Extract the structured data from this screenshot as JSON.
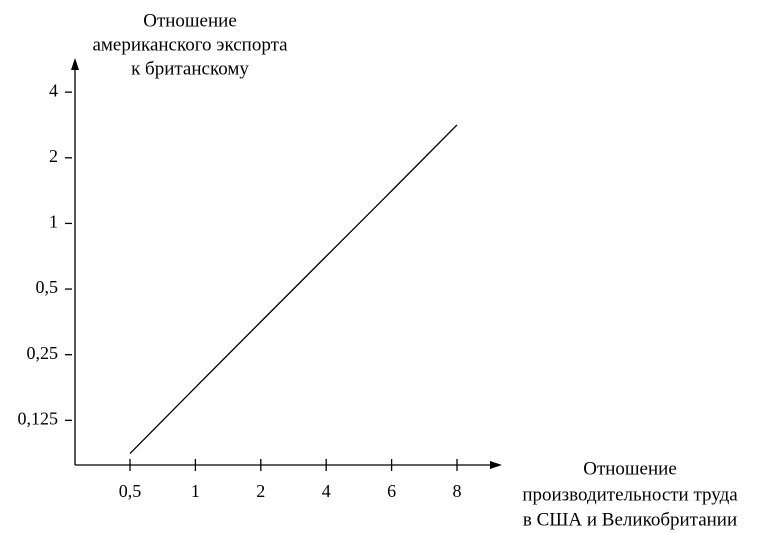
{
  "chart_data": {
    "type": "line",
    "y_label": [
      "Отношение",
      "американского экспорта",
      "к британскому"
    ],
    "x_label": [
      "Отношение",
      "производительности труда",
      "в США и Великобритании"
    ],
    "categories": [
      "0,5",
      "1",
      "2",
      "4",
      "6",
      "8"
    ],
    "series": [
      {
        "color": "#000000",
        "values": [
          0.088,
          0.177,
          0.354,
          0.707,
          1.41,
          2.83
        ]
      }
    ],
    "yscale": "log",
    "ylim": [
      0.078,
      5.5
    ],
    "yticks": [
      {
        "value": 0.125,
        "label": "0,125"
      },
      {
        "value": 0.25,
        "label": "0,25"
      },
      {
        "value": 0.5,
        "label": "0,5"
      },
      1,
      2,
      4
    ],
    "grid": false
  }
}
